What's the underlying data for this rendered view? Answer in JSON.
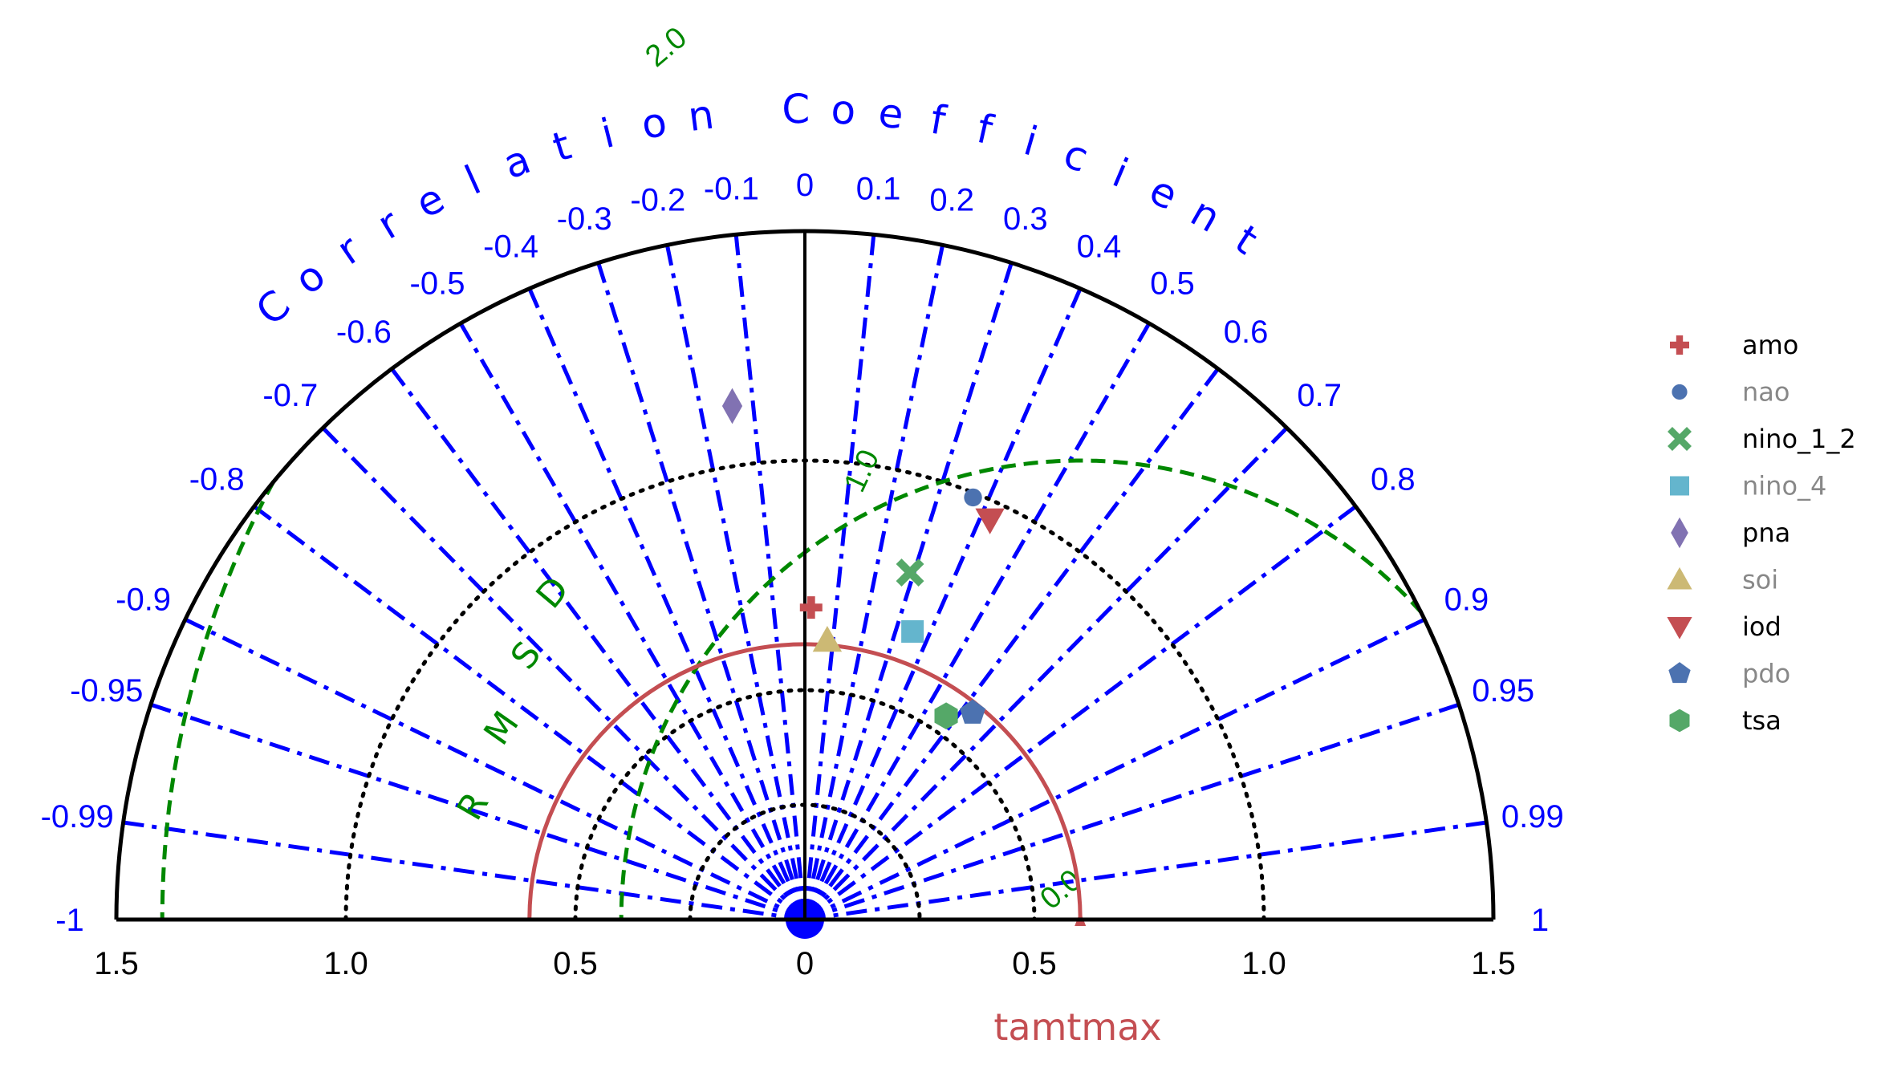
{
  "chart_data": {
    "type": "taylor",
    "title": "Correlation Coefficient",
    "xlabel": "tamtmax",
    "rmsd_label": "RMSD",
    "reference_std": 0.6,
    "std_range": [
      0,
      1.5
    ],
    "std_ticks": [
      "1.5",
      "1.0",
      "0.5",
      "0",
      "0.5",
      "1.0",
      "1.5"
    ],
    "std_tick_values": [
      -1.5,
      -1.0,
      -0.5,
      0,
      0.5,
      1.0,
      1.5
    ],
    "correlation_ticks": [
      {
        "value": -1,
        "label": "-1"
      },
      {
        "value": -0.99,
        "label": "-0.99"
      },
      {
        "value": -0.95,
        "label": "-0.95"
      },
      {
        "value": -0.9,
        "label": "-0.9"
      },
      {
        "value": -0.8,
        "label": "-0.8"
      },
      {
        "value": -0.7,
        "label": "-0.7"
      },
      {
        "value": -0.6,
        "label": "-0.6"
      },
      {
        "value": -0.5,
        "label": "-0.5"
      },
      {
        "value": -0.4,
        "label": "-0.4"
      },
      {
        "value": -0.3,
        "label": "-0.3"
      },
      {
        "value": -0.2,
        "label": "-0.2"
      },
      {
        "value": -0.1,
        "label": "-0.1"
      },
      {
        "value": 0,
        "label": "0"
      },
      {
        "value": 0.1,
        "label": "0.1"
      },
      {
        "value": 0.2,
        "label": "0.2"
      },
      {
        "value": 0.3,
        "label": "0.3"
      },
      {
        "value": 0.4,
        "label": "0.4"
      },
      {
        "value": 0.5,
        "label": "0.5"
      },
      {
        "value": 0.6,
        "label": "0.6"
      },
      {
        "value": 0.7,
        "label": "0.7"
      },
      {
        "value": 0.8,
        "label": "0.8"
      },
      {
        "value": 0.9,
        "label": "0.9"
      },
      {
        "value": 0.95,
        "label": "0.95"
      },
      {
        "value": 0.99,
        "label": "0.99"
      },
      {
        "value": 1,
        "label": "1"
      }
    ],
    "std_dotted_arcs": [
      0.25,
      0.5,
      1.0
    ],
    "rmsd_contours": [
      {
        "value": 0.0,
        "label": "0.0"
      },
      {
        "value": 1.0,
        "label": "1.0"
      },
      {
        "value": 2.0,
        "label": "2.0"
      }
    ],
    "series": [
      {
        "name": "amo",
        "std": 0.68,
        "corr": 0.02,
        "marker": "plus",
        "color": "#c44e52",
        "legend_color": "#000000"
      },
      {
        "name": "nao",
        "std": 0.99,
        "corr": 0.37,
        "marker": "circle",
        "color": "#4c72b0",
        "legend_color": "#888888"
      },
      {
        "name": "nino_1_2",
        "std": 0.79,
        "corr": 0.29,
        "marker": "x",
        "color": "#55a868",
        "legend_color": "#000000"
      },
      {
        "name": "nino_4",
        "std": 0.67,
        "corr": 0.35,
        "marker": "square",
        "color": "#64b5cd",
        "legend_color": "#888888"
      },
      {
        "name": "pna",
        "std": 1.13,
        "corr": -0.14,
        "marker": "diamond",
        "color": "#8172b2",
        "legend_color": "#000000"
      },
      {
        "name": "soi",
        "std": 0.61,
        "corr": 0.08,
        "marker": "triangle-up",
        "color": "#ccb974",
        "legend_color": "#888888"
      },
      {
        "name": "iod",
        "std": 0.96,
        "corr": 0.42,
        "marker": "triangle-down",
        "color": "#c44e52",
        "legend_color": "#000000"
      },
      {
        "name": "pdo",
        "std": 0.58,
        "corr": 0.63,
        "marker": "pentagon",
        "color": "#4c72b0",
        "legend_color": "#888888"
      },
      {
        "name": "tsa",
        "std": 0.54,
        "corr": 0.57,
        "marker": "hexagon",
        "color": "#55a868",
        "legend_color": "#000000"
      }
    ],
    "colors": {
      "correlation": "#0000ff",
      "rmsd": "#008800",
      "reference": "#c44e52",
      "axes": "#000000"
    },
    "legend_position": "right"
  }
}
